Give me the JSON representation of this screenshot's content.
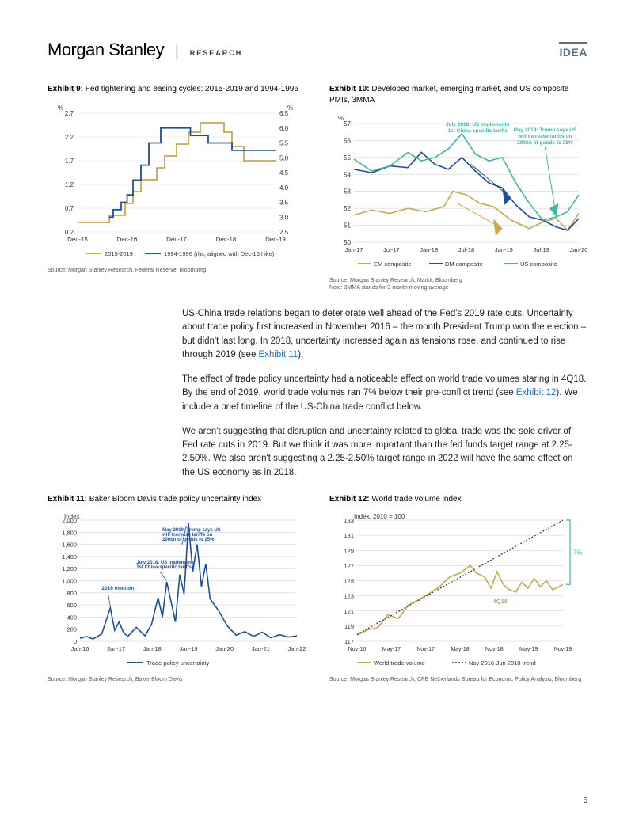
{
  "header": {
    "logo": "Morgan Stanley",
    "divider": "|",
    "label": "RESEARCH",
    "idea": "IDEA"
  },
  "exhibit9": {
    "label": "Exhibit 9:",
    "title": "Fed tightening and easing cycles: 2015-2019 and 1994-1996",
    "left_unit": "%",
    "right_unit": "%",
    "left_ticks": [
      "0.2",
      "0.7",
      "1.2",
      "1.7",
      "2.2",
      "2.7"
    ],
    "right_ticks": [
      "2.5",
      "3.0",
      "3.5",
      "4.0",
      "4.5",
      "5.0",
      "5.5",
      "6.0",
      "6.5"
    ],
    "x_ticks": [
      "Dec-15",
      "Dec-16",
      "Dec-17",
      "Dec-18",
      "Dec-19"
    ],
    "legend1": "2015-2019",
    "legend2": "1994-1996 (rhs, aligned with Dec-16 hike)",
    "source": "Source: Morgan Stanley Research, Federal Reserve, Bloomberg",
    "series1_color": "#c8a94a",
    "series2_color": "#1f4e9c",
    "grid_color": "#dddddd",
    "series1": [
      [
        0,
        0.4
      ],
      [
        16,
        0.4
      ],
      [
        16,
        0.55
      ],
      [
        24,
        0.55
      ],
      [
        24,
        0.8
      ],
      [
        28,
        0.8
      ],
      [
        28,
        1.05
      ],
      [
        32,
        1.05
      ],
      [
        32,
        1.3
      ],
      [
        40,
        1.3
      ],
      [
        40,
        1.55
      ],
      [
        44,
        1.55
      ],
      [
        44,
        1.8
      ],
      [
        50,
        1.8
      ],
      [
        50,
        2.05
      ],
      [
        56,
        2.05
      ],
      [
        56,
        2.3
      ],
      [
        62,
        2.3
      ],
      [
        62,
        2.5
      ],
      [
        74,
        2.5
      ],
      [
        74,
        2.3
      ],
      [
        78,
        2.3
      ],
      [
        78,
        2.0
      ],
      [
        84,
        2.0
      ],
      [
        84,
        1.7
      ],
      [
        100,
        1.7
      ]
    ],
    "series2": [
      [
        16,
        3.0
      ],
      [
        18,
        3.0
      ],
      [
        18,
        3.25
      ],
      [
        22,
        3.25
      ],
      [
        22,
        3.5
      ],
      [
        25,
        3.5
      ],
      [
        25,
        3.75
      ],
      [
        28,
        3.75
      ],
      [
        28,
        4.25
      ],
      [
        32,
        4.25
      ],
      [
        32,
        4.75
      ],
      [
        36,
        4.75
      ],
      [
        36,
        5.5
      ],
      [
        42,
        5.5
      ],
      [
        42,
        6.0
      ],
      [
        57,
        6.0
      ],
      [
        57,
        5.75
      ],
      [
        66,
        5.75
      ],
      [
        66,
        5.5
      ],
      [
        78,
        5.5
      ],
      [
        78,
        5.25
      ],
      [
        100,
        5.25
      ]
    ]
  },
  "exhibit10": {
    "label": "Exhibit 10:",
    "title": "Developed market, emerging market, and US composite PMIs, 3MMA",
    "left_unit": "%",
    "y_ticks": [
      "50",
      "51",
      "52",
      "53",
      "54",
      "55",
      "56",
      "57"
    ],
    "x_ticks": [
      "Jan-17",
      "Jul-17",
      "Jan-18",
      "Jul-18",
      "Jan-19",
      "Jul-19",
      "Jan-20"
    ],
    "legend1": "EM composite",
    "legend2": "DM composite",
    "legend3": "US composite",
    "anno1": "July 2018: US implements 1st China-specific tariffs",
    "anno2": "May 2019: Trump says US will increase tariffs on 200bn of goods to 25%",
    "source": "Source: Morgan Stanley Research, Markit, Bloomberg",
    "note": "Note: 3MMA stands for 3-month moving average",
    "color_em": "#c8a94a",
    "color_dm": "#1f4e9c",
    "color_us": "#3fb8a0",
    "grid_color": "#cccccc",
    "em": [
      [
        0,
        51.6
      ],
      [
        8,
        51.9
      ],
      [
        16,
        51.7
      ],
      [
        24,
        52.0
      ],
      [
        32,
        51.8
      ],
      [
        40,
        52.1
      ],
      [
        44,
        53.0
      ],
      [
        50,
        52.8
      ],
      [
        56,
        52.3
      ],
      [
        62,
        52.1
      ],
      [
        70,
        51.3
      ],
      [
        78,
        50.8
      ],
      [
        84,
        51.2
      ],
      [
        90,
        51.4
      ],
      [
        95,
        50.7
      ],
      [
        100,
        51.7
      ]
    ],
    "dm": [
      [
        0,
        54.3
      ],
      [
        8,
        54.1
      ],
      [
        16,
        54.5
      ],
      [
        24,
        54.4
      ],
      [
        30,
        55.3
      ],
      [
        36,
        54.6
      ],
      [
        42,
        54.3
      ],
      [
        48,
        55.0
      ],
      [
        54,
        54.2
      ],
      [
        60,
        53.5
      ],
      [
        66,
        53.2
      ],
      [
        72,
        52.2
      ],
      [
        78,
        51.5
      ],
      [
        84,
        51.3
      ],
      [
        90,
        50.9
      ],
      [
        95,
        50.7
      ],
      [
        100,
        51.4
      ]
    ],
    "us": [
      [
        0,
        54.9
      ],
      [
        8,
        54.2
      ],
      [
        16,
        54.5
      ],
      [
        24,
        55.3
      ],
      [
        30,
        54.8
      ],
      [
        36,
        55.0
      ],
      [
        42,
        55.5
      ],
      [
        48,
        56.4
      ],
      [
        54,
        55.2
      ],
      [
        60,
        54.8
      ],
      [
        66,
        55.0
      ],
      [
        72,
        53.5
      ],
      [
        78,
        52.3
      ],
      [
        84,
        51.3
      ],
      [
        90,
        51.5
      ],
      [
        95,
        51.8
      ],
      [
        100,
        52.8
      ]
    ]
  },
  "para1_a": "US-China trade relations began to deteriorate well ahead of the Fed's 2019 rate cuts. Uncertainty about trade policy first increased in November 2016 – the month President Trump won the election – but didn't last long. In 2018, uncertainty increased again as tensions rose, and continued to rise through 2019 (see ",
  "para1_link": "Exhibit 11",
  "para1_b": ").",
  "para2_a": "The effect of trade policy uncertainty had a noticeable effect on world trade volumes staring in 4Q18. By the end of 2019, world trade volumes ran 7% below their pre-conflict trend (see ",
  "para2_link": "Exhibit 12",
  "para2_b": "). We include a brief timeline of the US-China trade conflict below.",
  "para3": "We aren't suggesting that disruption and uncertainty related to global trade was the sole driver of Fed rate cuts in 2019. But we think it was more important than the fed funds target range at 2.25-2.50%. We also aren't suggesting a 2.25-2.50% target range in 2022 will have the same effect on the US economy as in 2018.",
  "exhibit11": {
    "label": "Exhibit 11:",
    "title": "Baker Bloom Davis trade policy uncertainty index",
    "y_label": "Index",
    "y_ticks": [
      "0",
      "200",
      "400",
      "600",
      "800",
      "1,000",
      "1,200",
      "1,400",
      "1,600",
      "1,800",
      "2,000"
    ],
    "x_ticks": [
      "Jan-16",
      "Jan-17",
      "Jan-18",
      "Jan-19",
      "Jan-20",
      "Jan-21",
      "Jan-22"
    ],
    "legend": "Trade policy uncertainty",
    "anno_election": "2016 election",
    "anno_july": "July 2018: US implements 1st China-specific tariffs",
    "anno_may": "May 2019: Trump says US will increase tariffs on 200bn of goods to 25%",
    "source": "Source: Morgan Stanley Research, Baker Bloom Davis",
    "color": "#1f4e9c",
    "grid_color": "#cccccc",
    "series": [
      [
        0,
        50
      ],
      [
        3,
        80
      ],
      [
        6,
        40
      ],
      [
        10,
        120
      ],
      [
        14,
        550
      ],
      [
        16,
        180
      ],
      [
        18,
        320
      ],
      [
        20,
        150
      ],
      [
        22,
        80
      ],
      [
        26,
        230
      ],
      [
        30,
        90
      ],
      [
        33,
        280
      ],
      [
        36,
        720
      ],
      [
        38,
        400
      ],
      [
        40,
        980
      ],
      [
        42,
        650
      ],
      [
        44,
        320
      ],
      [
        46,
        1100
      ],
      [
        48,
        780
      ],
      [
        50,
        1950
      ],
      [
        52,
        1150
      ],
      [
        54,
        1600
      ],
      [
        56,
        900
      ],
      [
        58,
        1280
      ],
      [
        60,
        700
      ],
      [
        64,
        500
      ],
      [
        68,
        250
      ],
      [
        72,
        100
      ],
      [
        76,
        160
      ],
      [
        80,
        80
      ],
      [
        84,
        150
      ],
      [
        88,
        60
      ],
      [
        92,
        110
      ],
      [
        96,
        70
      ],
      [
        100,
        90
      ]
    ]
  },
  "exhibit12": {
    "label": "Exhibit 12:",
    "title": "World trade volume index",
    "y_label": "Index, 2010 = 100",
    "y_ticks": [
      "117",
      "119",
      "121",
      "123",
      "125",
      "127",
      "129",
      "131",
      "133"
    ],
    "x_ticks": [
      "Nov-16",
      "May-17",
      "Nov-17",
      "May-18",
      "Nov-18",
      "May-19",
      "Nov-19"
    ],
    "legend1": "World trade volume",
    "legend2": "Nov 2016-Jun 2018 trend",
    "anno_4q18": "4Q18",
    "anno_7pct": "7%",
    "source": "Source: Morgan Stanley Research, CPB Netherlands Bureau for Economic Policy Analysis, Bloomberg",
    "color": "#c8a94a",
    "trend_color": "#333333",
    "bracket_color": "#3fb8a0",
    "grid_color": "#cccccc",
    "series": [
      [
        0,
        117.8
      ],
      [
        5,
        118.5
      ],
      [
        10,
        118.8
      ],
      [
        15,
        120.5
      ],
      [
        20,
        120.0
      ],
      [
        25,
        121.8
      ],
      [
        30,
        122.5
      ],
      [
        35,
        123.3
      ],
      [
        40,
        124.2
      ],
      [
        45,
        125.5
      ],
      [
        50,
        126.0
      ],
      [
        55,
        127.0
      ],
      [
        58,
        126.0
      ],
      [
        62,
        125.5
      ],
      [
        65,
        124.0
      ],
      [
        68,
        126.2
      ],
      [
        71,
        124.5
      ],
      [
        74,
        123.8
      ],
      [
        77,
        123.5
      ],
      [
        80,
        124.8
      ],
      [
        83,
        124.0
      ],
      [
        86,
        125.3
      ],
      [
        89,
        124.2
      ],
      [
        92,
        125.0
      ],
      [
        95,
        123.8
      ],
      [
        100,
        124.5
      ]
    ],
    "trend": [
      [
        0,
        117.9
      ],
      [
        100,
        133.0
      ]
    ]
  },
  "page_number": "5"
}
